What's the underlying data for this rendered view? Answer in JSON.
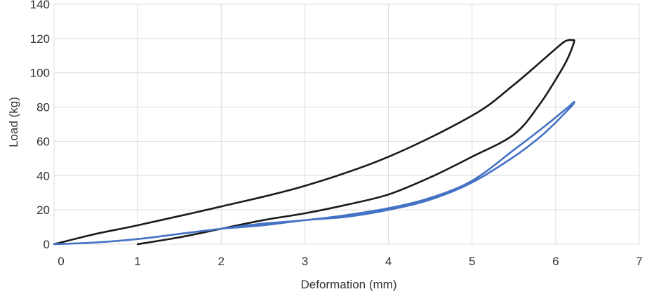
{
  "chart_data": {
    "type": "line",
    "title": "",
    "xlabel": "Deformation (mm)",
    "ylabel": "Load (kg)",
    "xlim": [
      0,
      7
    ],
    "ylim": [
      0,
      140
    ],
    "x_ticks": [
      0,
      1,
      2,
      3,
      4,
      5,
      6,
      7
    ],
    "y_ticks": [
      0,
      20,
      40,
      60,
      80,
      100,
      120,
      140
    ],
    "grid": true,
    "legend": "none",
    "series": [
      {
        "color": "#1a1a1a",
        "x": [
          0,
          0.5,
          1,
          2,
          3,
          4,
          5,
          5.5,
          6,
          6.1,
          6.15,
          6.2,
          6.22,
          6.15,
          6.05,
          5.8,
          5.5,
          5,
          4.5,
          4,
          3.5,
          3,
          2.5,
          2,
          1.5,
          1
        ],
        "y": [
          0,
          6,
          11,
          22,
          34,
          51,
          75,
          93,
          114,
          118,
          119,
          119,
          118,
          109,
          100,
          81,
          64,
          51,
          39,
          29,
          23,
          18,
          14,
          9,
          4,
          0
        ]
      },
      {
        "color": "#4472c4",
        "x": [
          0,
          0.5,
          1,
          1.5,
          2,
          2.5,
          3,
          3.5,
          4,
          4.5,
          5,
          5.5,
          5.8,
          6,
          6.1,
          6.2,
          6.22,
          6.15,
          6.05,
          5.9,
          5.5,
          5,
          4.5,
          4,
          3.5,
          3,
          2.5,
          2,
          1.5,
          1,
          0.5,
          0
        ],
        "y": [
          0,
          1,
          3,
          6,
          9,
          11,
          14,
          16,
          20,
          26,
          36,
          51,
          62,
          71,
          76,
          81,
          83,
          80,
          76,
          70,
          55,
          37,
          27,
          21,
          17,
          14,
          12,
          9,
          6,
          3,
          1,
          0
        ]
      }
    ]
  }
}
